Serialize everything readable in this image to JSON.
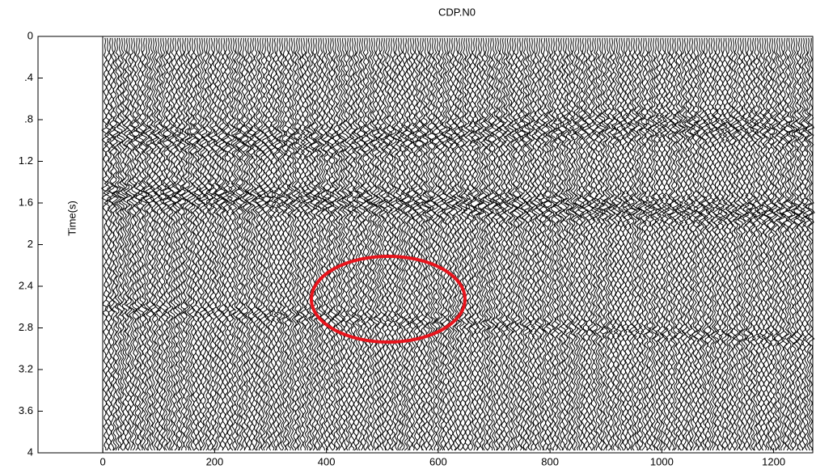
{
  "chart_data": {
    "type": "seismic",
    "title": "CDP.N0",
    "ylabel": "Time(s)",
    "xlim": [
      -116,
      1270
    ],
    "xticks": [
      0,
      200,
      400,
      600,
      800,
      1000,
      1200
    ],
    "ylim": [
      0,
      4
    ],
    "yticks": [
      0,
      {
        "value": 0.4,
        "label": ".4"
      },
      {
        "value": 0.8,
        "label": ".8"
      },
      1.2,
      1.6,
      2,
      2.4,
      2.8,
      3.2,
      3.6,
      4
    ],
    "y_inverted": true
  }
}
